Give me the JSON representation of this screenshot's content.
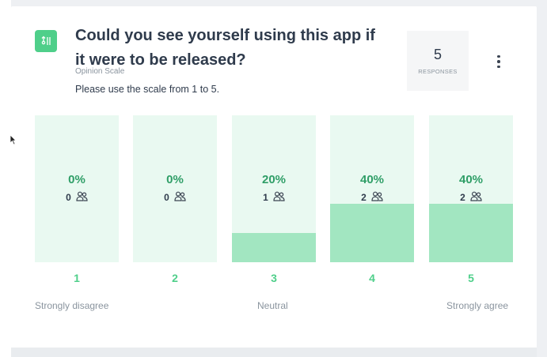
{
  "question": {
    "title": "Could you see yourself using this app if it were to be released?",
    "type": "Opinion Scale",
    "description": "Please use the scale from 1 to 5."
  },
  "responses": {
    "count": "5",
    "label": "RESPONSES"
  },
  "accent_color": "#4fcf8a",
  "options": [
    {
      "value": "1",
      "percent_text": "0%",
      "count": "0",
      "fraction": 0.0
    },
    {
      "value": "2",
      "percent_text": "0%",
      "count": "0",
      "fraction": 0.0
    },
    {
      "value": "3",
      "percent_text": "20%",
      "count": "1",
      "fraction": 0.2
    },
    {
      "value": "4",
      "percent_text": "40%",
      "count": "2",
      "fraction": 0.4
    },
    {
      "value": "5",
      "percent_text": "40%",
      "count": "2",
      "fraction": 0.4
    }
  ],
  "scale_labels": {
    "low": "Strongly disagree",
    "mid": "Neutral",
    "high": "Strongly agree"
  },
  "icons": {
    "question_type": "opinion-scale-icon",
    "people": "people-icon",
    "menu": "more-vertical-icon"
  }
}
